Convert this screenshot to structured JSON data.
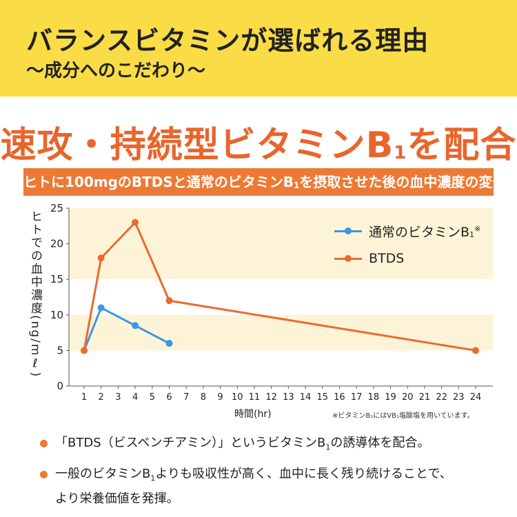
{
  "header": {
    "title": "バランスビタミンが選ばれる理由",
    "subtitle": "〜成分へのこだわり〜"
  },
  "heading": {
    "before": "速攻・持続型ビタミンB",
    "sub": "1",
    "after": "を配合"
  },
  "caption": {
    "before": "ヒトに100mgのBTDSと通常のビタミンB",
    "sub": "1",
    "after": "を摂取させた後の血中濃度の変化"
  },
  "colors": {
    "header_band": "#fadc46",
    "accent_orange": "#e8652c",
    "series_btds": "#ec6a2c",
    "series_normal": "#3a97e0",
    "band_fill": "#fdf4d8"
  },
  "chart_data": {
    "type": "line",
    "ylabel": "ヒトでの血中濃度(ng/mℓ)",
    "xlabel": "時間(hr)",
    "x_ticks": [
      1,
      2,
      3,
      4,
      5,
      6,
      7,
      8,
      9,
      10,
      11,
      12,
      13,
      14,
      15,
      16,
      17,
      18,
      19,
      20,
      21,
      22,
      23,
      24
    ],
    "y_ticks": [
      0,
      5,
      10,
      15,
      20,
      25
    ],
    "xlim": [
      0.1,
      25
    ],
    "ylim": [
      0,
      25
    ],
    "bands": [
      [
        5,
        10
      ],
      [
        15,
        20
      ],
      [
        20,
        25
      ]
    ],
    "legend_position": "top-right",
    "series": [
      {
        "name": "通常のビタミンB₁※",
        "name_parts": {
          "before": "通常のビタミンB",
          "sub": "1",
          "sup": "※"
        },
        "color": "#3a97e0",
        "points": [
          [
            1,
            5
          ],
          [
            2,
            11
          ],
          [
            4,
            8.5
          ],
          [
            6,
            6
          ]
        ]
      },
      {
        "name": "BTDS",
        "color": "#ec6a2c",
        "points": [
          [
            1,
            5
          ],
          [
            2,
            18
          ],
          [
            4,
            23
          ],
          [
            6,
            12
          ],
          [
            24,
            5
          ]
        ]
      }
    ],
    "footnote": "※ビタミンB₁にはVB₁塩酸塩を用いています。"
  },
  "bullets": [
    {
      "lines": [
        {
          "before": "「BTDS（ビスベンチアミン）」というビタミンB",
          "sub": "1",
          "after": "の誘導体を配合。"
        }
      ]
    },
    {
      "lines": [
        {
          "before": "一般のビタミンB",
          "sub": "1",
          "after": "よりも吸収性が高く、血中に長く残り続けることで、"
        },
        {
          "before": "より栄養価値を発揮。",
          "sub": "",
          "after": ""
        }
      ]
    }
  ]
}
